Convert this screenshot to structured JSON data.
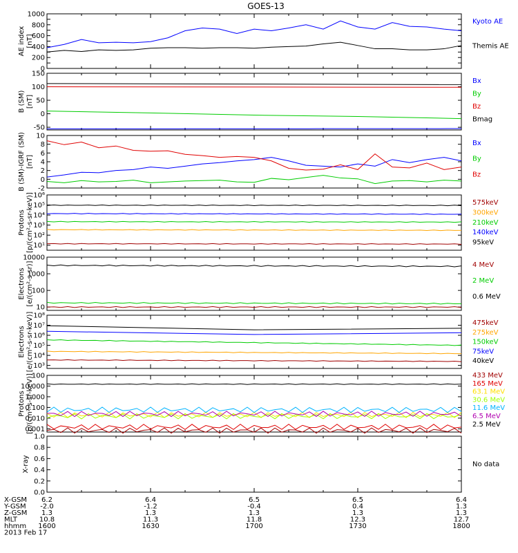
{
  "title": "GOES-13",
  "date_label": "2013 Feb 17",
  "no_data_text": "No data",
  "colors": {
    "black": "#000000",
    "blue": "#0000ff",
    "red": "#e00000",
    "green": "#00cc00",
    "darkred": "#a00000",
    "orange": "#ffa500",
    "cyan": "#00b4ff",
    "yellow": "#ffe000",
    "lime": "#a0ff00",
    "purple": "#b000b0"
  },
  "ephemeris": {
    "row_labels": [
      "X-GSM",
      "Y-GSM",
      "Z-GSM",
      "MLT",
      "hhmm"
    ],
    "times": [
      1600,
      1630,
      1700,
      1730,
      1800
    ],
    "rows": [
      [
        "6.2",
        "6.4",
        "6.5",
        "6.5",
        "6.4"
      ],
      [
        "-2.0",
        "-1.2",
        "-0.4",
        "0.4",
        "1.3"
      ],
      [
        "1.3",
        "1.3",
        "1.3",
        "1.3",
        "1.3"
      ],
      [
        "10.8",
        "11.3",
        "11.8",
        "12.3",
        "12.7"
      ],
      [
        "1600",
        "1630",
        "1700",
        "1730",
        "1800"
      ]
    ]
  },
  "chart_data": [
    {
      "type": "line",
      "ylabel": "AE index\n[nT]",
      "yscale": "linear",
      "ylim": [
        0,
        1000
      ],
      "yticks": [
        "0",
        "100",
        "200",
        "300",
        "400",
        "500",
        "600",
        "700",
        "800",
        "900",
        "1000"
      ],
      "ylabels_shown": [
        "0",
        "200",
        "400",
        "600",
        "800",
        "1000"
      ],
      "series": [
        {
          "name": "Kyoto AE",
          "color": "blue",
          "x": [
            1600,
            1605,
            1610,
            1615,
            1620,
            1625,
            1630,
            1635,
            1640,
            1645,
            1650,
            1655,
            1700,
            1705,
            1710,
            1715,
            1720,
            1725,
            1730,
            1735,
            1740,
            1745,
            1750,
            1755,
            1800
          ],
          "values": [
            380,
            440,
            530,
            470,
            480,
            470,
            490,
            560,
            690,
            740,
            720,
            640,
            720,
            690,
            740,
            800,
            720,
            870,
            760,
            720,
            840,
            770,
            760,
            720,
            690
          ]
        },
        {
          "name": "Themis AE",
          "color": "black",
          "x": [
            1600,
            1605,
            1610,
            1615,
            1620,
            1625,
            1630,
            1635,
            1640,
            1645,
            1650,
            1655,
            1700,
            1705,
            1710,
            1715,
            1720,
            1725,
            1730,
            1735,
            1740,
            1745,
            1750,
            1755,
            1800
          ],
          "values": [
            300,
            330,
            310,
            340,
            330,
            340,
            370,
            380,
            380,
            370,
            380,
            380,
            370,
            390,
            400,
            410,
            450,
            480,
            420,
            360,
            360,
            340,
            340,
            360,
            420
          ]
        }
      ]
    },
    {
      "type": "line",
      "ylabel": "B (SM)\n[nT]",
      "yscale": "linear",
      "ylim": [
        -60,
        150
      ],
      "yticks": [
        "-50",
        "0",
        "50",
        "100",
        "150"
      ],
      "series": [
        {
          "name": "Bx",
          "color": "blue",
          "x": [
            1600,
            1800
          ],
          "values": [
            -56,
            -55
          ]
        },
        {
          "name": "By",
          "color": "green",
          "x": [
            1600,
            1630,
            1700,
            1730,
            1800
          ],
          "values": [
            10,
            3,
            -5,
            -10,
            -18
          ]
        },
        {
          "name": "Bz",
          "color": "red",
          "x": [
            1600,
            1700,
            1800
          ],
          "values": [
            100,
            99,
            98
          ]
        },
        {
          "name": "Bmag",
          "color": "black",
          "x": [
            1600,
            1700,
            1800
          ],
          "values": [
            112,
            110,
            108
          ]
        }
      ]
    },
    {
      "type": "line",
      "ylabel": "B (SM)-IGRF (SM)\n[nT]",
      "yscale": "linear",
      "ylim": [
        -2,
        10
      ],
      "yticks": [
        "-2",
        "0",
        "2",
        "4",
        "6",
        "8",
        "10"
      ],
      "series": [
        {
          "name": "Bx",
          "color": "blue",
          "x": [
            1600,
            1605,
            1610,
            1615,
            1620,
            1625,
            1630,
            1635,
            1640,
            1645,
            1650,
            1655,
            1700,
            1705,
            1710,
            1715,
            1720,
            1725,
            1730,
            1735,
            1740,
            1745,
            1750,
            1755,
            1800
          ],
          "values": [
            0.5,
            1.0,
            1.6,
            1.5,
            2.0,
            2.2,
            2.8,
            2.5,
            3.0,
            3.5,
            3.8,
            4.2,
            4.5,
            5.0,
            4.2,
            3.2,
            3.0,
            2.8,
            3.5,
            3.0,
            4.5,
            3.8,
            4.5,
            5.0,
            4.2
          ]
        },
        {
          "name": "By",
          "color": "green",
          "x": [
            1600,
            1605,
            1610,
            1615,
            1620,
            1625,
            1630,
            1635,
            1640,
            1645,
            1650,
            1655,
            1700,
            1705,
            1710,
            1715,
            1720,
            1725,
            1730,
            1735,
            1740,
            1745,
            1750,
            1755,
            1800
          ],
          "values": [
            -0.5,
            -0.8,
            -0.3,
            -0.6,
            -0.5,
            -0.2,
            -0.8,
            -0.6,
            -0.4,
            -0.3,
            -0.2,
            -0.6,
            -0.7,
            0.2,
            -0.1,
            0.4,
            0.9,
            0.3,
            0.1,
            -1.0,
            -0.4,
            -0.3,
            -0.6,
            -0.2,
            -0.4
          ]
        },
        {
          "name": "Bz",
          "color": "red",
          "x": [
            1600,
            1605,
            1610,
            1615,
            1620,
            1625,
            1630,
            1635,
            1640,
            1645,
            1650,
            1655,
            1700,
            1705,
            1710,
            1715,
            1720,
            1725,
            1730,
            1735,
            1740,
            1745,
            1750,
            1755,
            1800
          ],
          "values": [
            8.8,
            7.9,
            8.5,
            7.2,
            7.6,
            6.6,
            6.4,
            6.5,
            5.7,
            5.4,
            5.0,
            5.2,
            5.0,
            4.2,
            2.5,
            2.1,
            2.3,
            3.3,
            2.2,
            5.8,
            2.8,
            2.6,
            3.7,
            2.2,
            2.8
          ]
        }
      ]
    },
    {
      "type": "line",
      "ylabel": "Protons\n[p/(cm²-s-sr-keV)]",
      "yscale": "log",
      "ylim_exp": [
        0.5,
        6
      ],
      "yticks": [
        "10¹",
        "10²",
        "10³",
        "10⁴",
        "10⁵",
        "10⁶"
      ],
      "series": [
        {
          "name": "575keV",
          "color": "darkred",
          "x": [
            1600,
            1800
          ],
          "values": [
            14,
            13
          ]
        },
        {
          "name": "300keV",
          "color": "orange",
          "x": [
            1600,
            1800
          ],
          "values": [
            350,
            300
          ]
        },
        {
          "name": "210keV",
          "color": "green",
          "x": [
            1600,
            1800
          ],
          "values": [
            2200,
            2000
          ]
        },
        {
          "name": "140keV",
          "color": "blue",
          "x": [
            1600,
            1800
          ],
          "values": [
            14000,
            12000
          ]
        },
        {
          "name": "95keV",
          "color": "black",
          "x": [
            1600,
            1800
          ],
          "values": [
            95000,
            90000
          ]
        }
      ]
    },
    {
      "type": "line",
      "ylabel": "Electrons\n[e/(cm²-s-sr)]",
      "yscale": "log",
      "ylim_exp": [
        0.8,
        4
      ],
      "yticks": [
        "10",
        "100",
        "1000",
        "10000"
      ],
      "series": [
        {
          "name": "4 MeV",
          "color": "darkred",
          "x": [
            1600,
            1800
          ],
          "values": [
            10,
            10
          ]
        },
        {
          "name": "2 MeV",
          "color": "green",
          "x": [
            1600,
            1800
          ],
          "values": [
            18,
            16
          ]
        },
        {
          "name": "0.6 MeV",
          "color": "black",
          "x": [
            1600,
            1800
          ],
          "values": [
            3200,
            2800
          ]
        }
      ]
    },
    {
      "type": "line",
      "ylabel": "Electrons\n[e/(cm²-s-sr-keV)]",
      "yscale": "log",
      "ylim_exp": [
        2.7,
        8
      ],
      "yticks": [
        "10³",
        "10⁴",
        "10⁵",
        "10⁶",
        "10⁷",
        "10⁸"
      ],
      "series": [
        {
          "name": "475keV",
          "color": "darkred",
          "x": [
            1600,
            1800
          ],
          "values": [
            3500,
            2500
          ]
        },
        {
          "name": "275keV",
          "color": "orange",
          "x": [
            1600,
            1800
          ],
          "values": [
            25000,
            15000
          ]
        },
        {
          "name": "150keV",
          "color": "green",
          "x": [
            1600,
            1800
          ],
          "values": [
            350000,
            100000
          ]
        },
        {
          "name": "75keV",
          "color": "blue",
          "x": [
            1600,
            1700,
            1800
          ],
          "values": [
            2500000,
            1200000,
            1800000
          ]
        },
        {
          "name": "40keV",
          "color": "black",
          "x": [
            1600,
            1700,
            1800
          ],
          "values": [
            9000000,
            3500000,
            5000000
          ]
        }
      ]
    },
    {
      "type": "line",
      "ylabel": "Protons\n[p/(cm²-s-sr-keV)]",
      "yscale": "log",
      "ylim_exp": [
        -3.3,
        2
      ],
      "yticks": [
        "0.001",
        "0.010",
        "0.100",
        "1.000",
        "10.000",
        "100"
      ],
      "series": [
        {
          "name": "433 MeV",
          "color": "darkred",
          "x": [
            1600,
            1800
          ],
          "values": [
            0.0007,
            0.0007
          ]
        },
        {
          "name": "165 MeV",
          "color": "red",
          "x": [
            1600,
            1800
          ],
          "values": [
            0.0015,
            0.0015
          ]
        },
        {
          "name": "63.1 MeV",
          "color": "yellow",
          "x": [
            1600,
            1800
          ],
          "values": [
            0.02,
            0.02
          ]
        },
        {
          "name": "30.6 MeV",
          "color": "lime",
          "x": [
            1600,
            1800
          ],
          "values": [
            0.015,
            0.015
          ]
        },
        {
          "name": "11.6 MeV",
          "color": "cyan",
          "x": [
            1600,
            1800
          ],
          "values": [
            0.06,
            0.06
          ]
        },
        {
          "name": "6.5 MeV",
          "color": "purple",
          "x": [
            1600,
            1800
          ],
          "values": [
            0.025,
            0.025
          ]
        },
        {
          "name": "2.5 MeV",
          "color": "black",
          "x": [
            1600,
            1800
          ],
          "values": [
            15,
            15
          ]
        }
      ]
    },
    {
      "type": "line",
      "ylabel": "X-ray",
      "yscale": "linear",
      "ylim": [
        0,
        1
      ],
      "yticks": [
        "0.0",
        "0.2",
        "0.4",
        "0.6",
        "0.8",
        "1.0"
      ],
      "series": [
        {
          "name": "No data",
          "color": "black",
          "x": [],
          "values": []
        }
      ]
    }
  ]
}
